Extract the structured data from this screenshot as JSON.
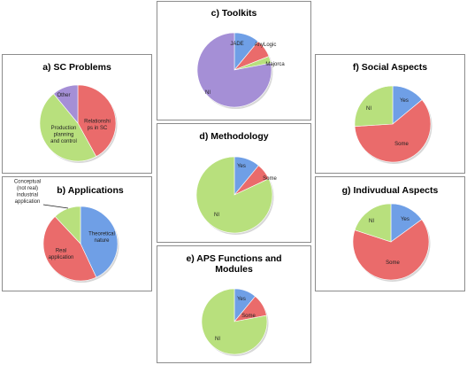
{
  "colors": {
    "blue": "#6f9fe6",
    "red": "#ea6b6b",
    "green": "#b8e07d",
    "purple": "#a58fd6"
  },
  "chart_data": [
    {
      "id": "a",
      "type": "pie",
      "title": "a) SC Problems",
      "slices": [
        {
          "label": "Relationships in SC",
          "value": 42,
          "color": "red"
        },
        {
          "label": "Production planning and control",
          "value": 47,
          "color": "green"
        },
        {
          "label": "Other",
          "value": 11,
          "color": "purple"
        }
      ]
    },
    {
      "id": "b",
      "type": "pie",
      "title": "b) Applications",
      "slices": [
        {
          "label": "Theoretical nature",
          "value": 43,
          "color": "blue"
        },
        {
          "label": "Real application",
          "value": 45,
          "color": "red"
        },
        {
          "label": "Conceptual (not real) industrial application",
          "value": 12,
          "color": "green"
        }
      ]
    },
    {
      "id": "c",
      "type": "pie",
      "title": "c) Toolkits",
      "slices": [
        {
          "label": "JADE",
          "value": 11,
          "color": "blue"
        },
        {
          "label": "AnyLogic",
          "value": 8,
          "color": "red"
        },
        {
          "label": "Majorca",
          "value": 3,
          "color": "green"
        },
        {
          "label": "NI",
          "value": 78,
          "color": "purple"
        }
      ]
    },
    {
      "id": "d",
      "type": "pie",
      "title": "d) Methodology",
      "slices": [
        {
          "label": "Yes",
          "value": 11,
          "color": "blue"
        },
        {
          "label": "Some",
          "value": 7,
          "color": "red"
        },
        {
          "label": "NI",
          "value": 82,
          "color": "green"
        }
      ]
    },
    {
      "id": "e",
      "type": "pie",
      "title": "e) APS Functions and Modules",
      "slices": [
        {
          "label": "Yes",
          "value": 11,
          "color": "blue"
        },
        {
          "label": "Some",
          "value": 11,
          "color": "red"
        },
        {
          "label": "NI",
          "value": 78,
          "color": "green"
        }
      ]
    },
    {
      "id": "f",
      "type": "pie",
      "title": "f) Social Aspects",
      "slices": [
        {
          "label": "Yes",
          "value": 14,
          "color": "blue"
        },
        {
          "label": "Some",
          "value": 60,
          "color": "red"
        },
        {
          "label": "NI",
          "value": 26,
          "color": "green"
        }
      ]
    },
    {
      "id": "g",
      "type": "pie",
      "title": "g) Indivudual Aspects",
      "slices": [
        {
          "label": "Yes",
          "value": 15,
          "color": "blue"
        },
        {
          "label": "Some",
          "value": 65,
          "color": "red"
        },
        {
          "label": "NI",
          "value": 20,
          "color": "green"
        }
      ]
    }
  ]
}
